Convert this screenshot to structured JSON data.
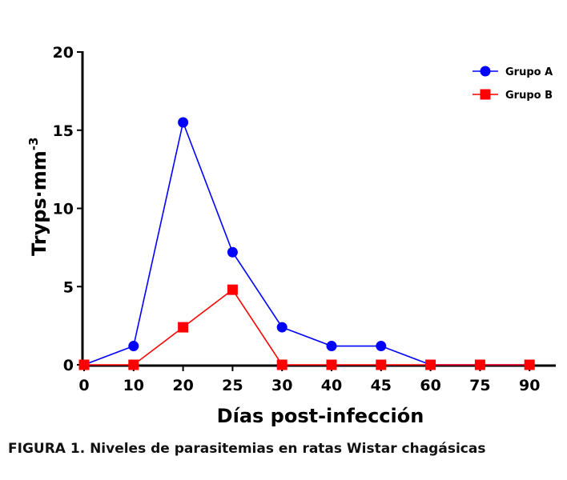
{
  "chart_data": {
    "type": "line",
    "categories": [
      "0",
      "10",
      "20",
      "25",
      "30",
      "40",
      "45",
      "60",
      "75",
      "90"
    ],
    "series": [
      {
        "name": "Grupo A",
        "color": "#0000ff",
        "marker": "circle",
        "values": [
          0,
          1.2,
          15.5,
          7.2,
          2.4,
          1.2,
          1.2,
          0,
          0,
          0
        ]
      },
      {
        "name": "Grupo B",
        "color": "#ff0000",
        "marker": "square",
        "values": [
          0,
          0,
          2.4,
          4.8,
          0,
          0,
          0,
          0,
          0,
          0
        ]
      }
    ],
    "xlabel": "Días post-infección",
    "ylabel": "Tryps·mm",
    "ylabel_superscript": "-3",
    "ylim": [
      0,
      20
    ],
    "yticks": [
      "0",
      "5",
      "10",
      "15",
      "20"
    ],
    "grid": false,
    "legend": "top-right"
  },
  "caption": "FIGURA 1. Niveles de parasitemias en ratas Wistar chagásicas"
}
